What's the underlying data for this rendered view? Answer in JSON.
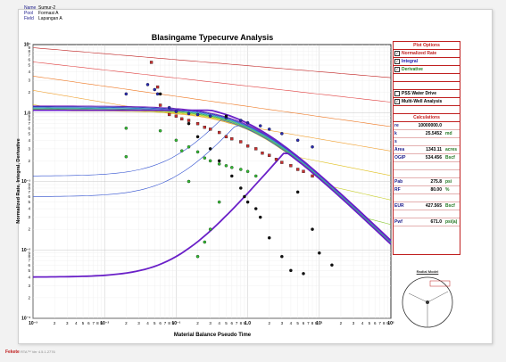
{
  "info": {
    "name_label": "Name",
    "name_value": "Sumur-2",
    "pool_label": "Pool",
    "pool_value": "Formasi A",
    "field_label": "Field",
    "field_value": "Lapangan A"
  },
  "chart_data": {
    "type": "scatter",
    "title": "Blasingame Typecurve Analysis",
    "xlabel": "Material Balance Pseudo Time",
    "ylabel": "Normalized  Rate, Integral, Derivative",
    "x_scale": "log",
    "y_scale": "log",
    "xlim": [
      0.001,
      100
    ],
    "ylim": [
      0.001,
      10
    ],
    "x_ticks": [
      "10⁻³",
      "10⁻²",
      "10⁻¹",
      "1.0",
      "10¹",
      "10²"
    ],
    "y_ticks": [
      "10⁻³",
      "10⁻²",
      "10⁻¹",
      "1.0",
      "10¹"
    ],
    "series": [
      {
        "color": "#c83030",
        "marker": "square",
        "points": [
          [
            0.045,
            5.5
          ],
          [
            0.055,
            2.4
          ],
          [
            0.06,
            1.3
          ],
          [
            0.08,
            0.95
          ],
          [
            0.1,
            0.9
          ],
          [
            0.12,
            0.82
          ],
          [
            0.15,
            0.78
          ],
          [
            0.2,
            0.7
          ],
          [
            0.25,
            0.62
          ],
          [
            0.3,
            0.58
          ],
          [
            0.4,
            0.52
          ],
          [
            0.5,
            0.45
          ],
          [
            0.6,
            0.42
          ],
          [
            0.8,
            0.38
          ],
          [
            1.0,
            0.33
          ],
          [
            1.3,
            0.3
          ],
          [
            1.6,
            0.26
          ],
          [
            2.0,
            0.24
          ],
          [
            2.5,
            0.21
          ],
          [
            3.0,
            0.19
          ],
          [
            4.0,
            0.17
          ],
          [
            5.0,
            0.15
          ],
          [
            6.0,
            0.14
          ],
          [
            8.0,
            0.12
          ]
        ]
      },
      {
        "color": "#2a2ab0",
        "marker": "circle",
        "points": [
          [
            0.04,
            2.6
          ],
          [
            0.05,
            2.2
          ],
          [
            0.055,
            1.9
          ],
          [
            0.02,
            1.9
          ],
          [
            0.08,
            1.2
          ],
          [
            0.1,
            1.05
          ],
          [
            0.15,
            0.98
          ],
          [
            0.2,
            0.95
          ],
          [
            0.3,
            0.9
          ],
          [
            0.5,
            0.85
          ],
          [
            0.8,
            0.78
          ],
          [
            1.0,
            0.72
          ],
          [
            1.5,
            0.65
          ],
          [
            2.0,
            0.58
          ],
          [
            3.0,
            0.5
          ],
          [
            5.0,
            0.4
          ],
          [
            8.0,
            0.32
          ]
        ]
      },
      {
        "color": "#33bb33",
        "marker": "circle",
        "points": [
          [
            0.02,
            0.6
          ],
          [
            0.06,
            0.55
          ],
          [
            0.02,
            0.23
          ],
          [
            0.1,
            0.4
          ],
          [
            0.12,
            0.28
          ],
          [
            0.15,
            0.32
          ],
          [
            0.2,
            0.27
          ],
          [
            0.25,
            0.22
          ],
          [
            0.3,
            0.2
          ],
          [
            0.4,
            0.18
          ],
          [
            0.5,
            0.17
          ],
          [
            0.6,
            0.16
          ],
          [
            0.8,
            0.15
          ],
          [
            1.0,
            0.14
          ],
          [
            1.3,
            0.12
          ],
          [
            0.2,
            0.008
          ],
          [
            0.25,
            0.013
          ],
          [
            0.3,
            0.02
          ],
          [
            0.4,
            0.05
          ],
          [
            0.15,
            0.1
          ]
        ]
      },
      {
        "color": "#111111",
        "marker": "circle",
        "points": [
          [
            0.06,
            1.9
          ],
          [
            0.15,
            0.7
          ],
          [
            0.2,
            0.45
          ],
          [
            0.3,
            0.3
          ],
          [
            0.4,
            0.2
          ],
          [
            0.6,
            0.12
          ],
          [
            0.8,
            0.08
          ],
          [
            1.0,
            0.05
          ],
          [
            1.5,
            0.03
          ],
          [
            2.0,
            0.015
          ],
          [
            3.0,
            0.008
          ],
          [
            4.0,
            0.005
          ],
          [
            6.0,
            0.0045
          ],
          [
            8.0,
            0.02
          ],
          [
            10,
            0.009
          ],
          [
            15,
            0.006
          ],
          [
            0.5,
            0.9
          ],
          [
            0.9,
            0.06
          ],
          [
            1.3,
            0.04
          ],
          [
            5.0,
            0.07
          ]
        ]
      }
    ],
    "typecurves": {
      "colors": [
        "#c02020",
        "#e04040",
        "#ee7722",
        "#f0a030",
        "#e0c020",
        "#c8d030",
        "#88c830",
        "#40b040",
        "#30b080",
        "#30a0c0",
        "#3070d0",
        "#3040c0",
        "#4030b0",
        "#8020c0"
      ],
      "thick_color": "#6a20c8"
    }
  },
  "panel": {
    "title": "Plot Options",
    "options": [
      {
        "label": "Normalized Rate",
        "checked": true,
        "color": "#c02020"
      },
      {
        "label": "Integral",
        "checked": true,
        "color": "#2020b0"
      },
      {
        "label": "Derivative",
        "checked": true,
        "color": "#208020"
      },
      {
        "label": "PSS Water Drive",
        "checked": false,
        "color": "#000000"
      },
      {
        "label": "Multi-Well Analysis",
        "checked": true,
        "color": "#000000"
      }
    ],
    "calc_title": "Calculations",
    "calcs": [
      {
        "k": "re",
        "v": "10000000.0",
        "u": ""
      },
      {
        "k": "k",
        "v": "25.5452",
        "u": "md"
      },
      {
        "k": "s",
        "v": "",
        "u": ""
      },
      {
        "k": "Area",
        "v": "1343.11",
        "u": "acres"
      },
      {
        "k": "OGIP",
        "v": "534.456",
        "u": "Bscf"
      },
      {
        "k": "",
        "v": "",
        "u": ""
      },
      {
        "k": "",
        "v": "",
        "u": ""
      },
      {
        "k": "Pab",
        "v": "275.8",
        "u": "psi"
      },
      {
        "k": "RF",
        "v": "80.00",
        "u": "%"
      },
      {
        "k": "",
        "v": "",
        "u": ""
      },
      {
        "k": "EUR",
        "v": "427.565",
        "u": "Bscf"
      },
      {
        "k": "",
        "v": "",
        "u": ""
      },
      {
        "k": "Pwf",
        "v": "671.0",
        "u": "psi(a)"
      }
    ]
  },
  "radial": {
    "title": "Radial Model"
  },
  "footer": {
    "brand": "Fekete",
    "version": "RTA™ Ver 4.5.1.2776"
  }
}
